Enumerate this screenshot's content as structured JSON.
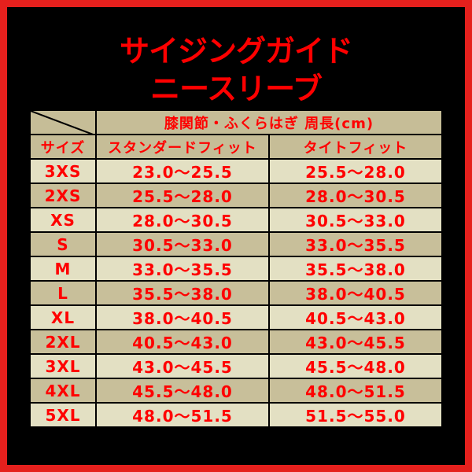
{
  "title": {
    "line1": "サイジングガイド",
    "line2": "ニースリーブ"
  },
  "table": {
    "group_header": "膝関節・ふくらはぎ 周長(cm)",
    "columns": [
      "サイズ",
      "スタンダードフィット",
      "タイトフィット"
    ],
    "rows": [
      [
        "3XS",
        "23.0～25.5",
        "25.5～28.0"
      ],
      [
        "2XS",
        "25.5～28.0",
        "28.0～30.5"
      ],
      [
        "XS",
        "28.0～30.5",
        "30.5～33.0"
      ],
      [
        "S",
        "30.5～33.0",
        "33.0～35.5"
      ],
      [
        "M",
        "33.0～35.5",
        "35.5～38.0"
      ],
      [
        "L",
        "35.5～38.0",
        "38.0～40.5"
      ],
      [
        "XL",
        "38.0～40.5",
        "40.5～43.0"
      ],
      [
        "2XL",
        "40.5～43.0",
        "43.0～45.5"
      ],
      [
        "3XL",
        "43.0～45.5",
        "45.5～48.0"
      ],
      [
        "4XL",
        "45.5～48.0",
        "48.0～51.5"
      ],
      [
        "5XL",
        "48.0～51.5",
        "51.5～55.0"
      ]
    ]
  },
  "colors": {
    "frame": "#e5201d",
    "text": "#ff0000",
    "header_bg": "#c6bd97",
    "row_light": "#e3e0c3",
    "row_dark": "#c8bf9a"
  }
}
